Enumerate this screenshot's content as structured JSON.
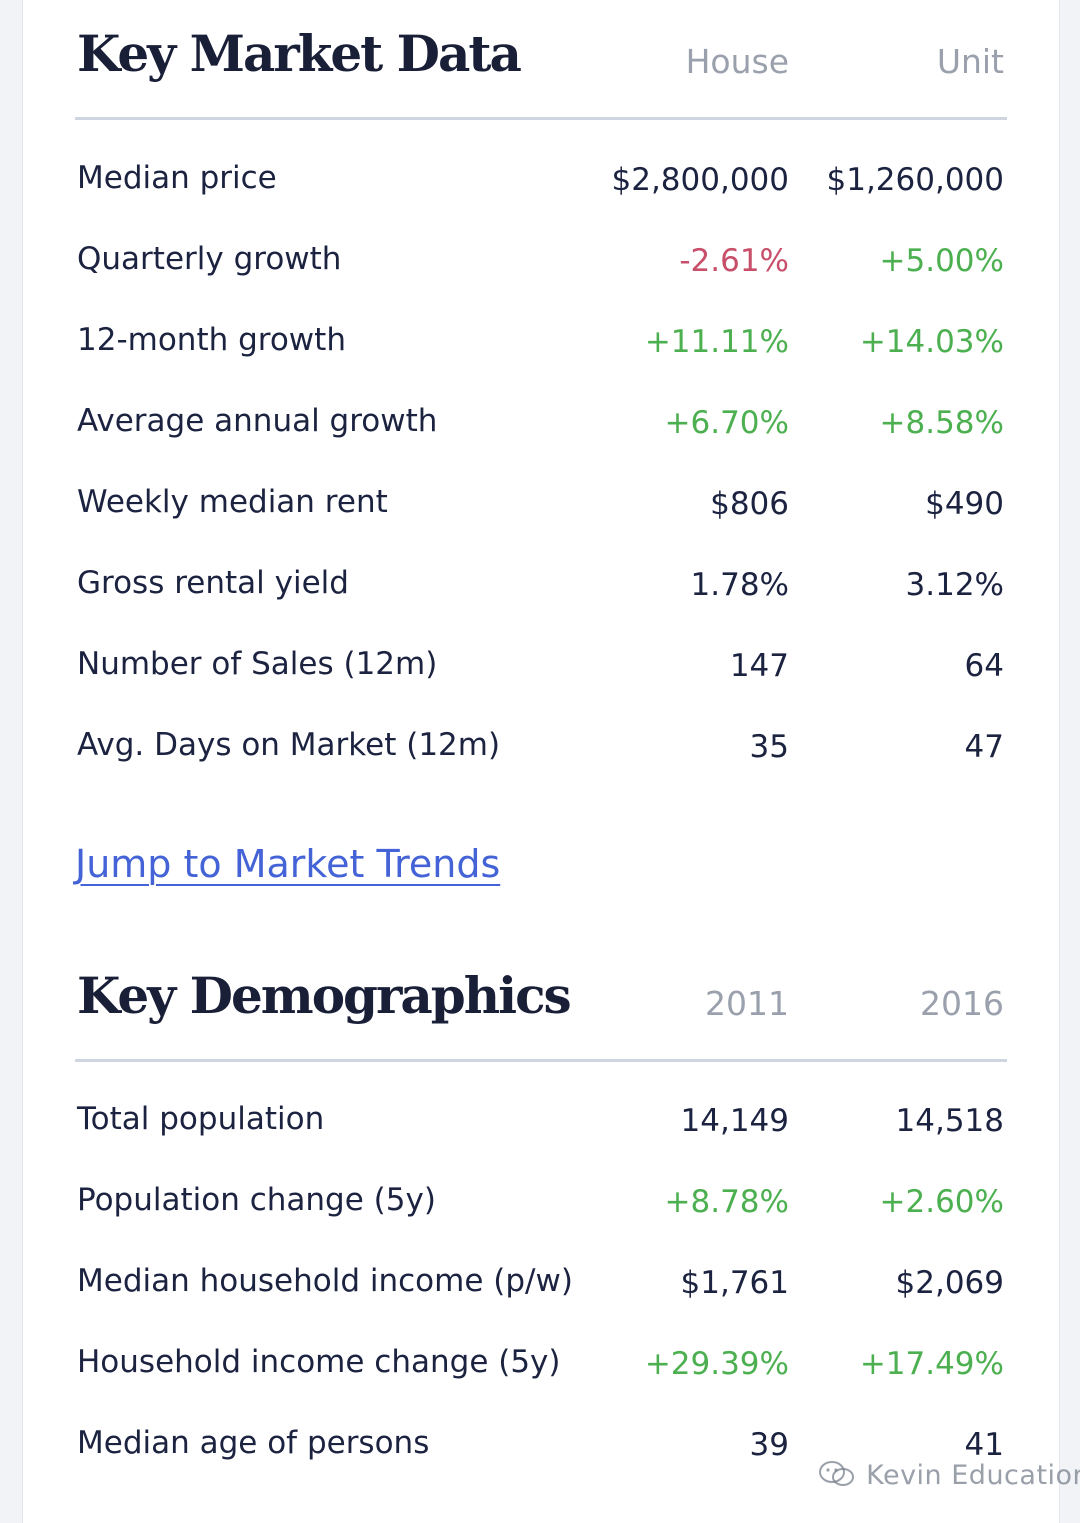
{
  "market": {
    "title": "Key Market Data",
    "col1": "House",
    "col2": "Unit",
    "rows": [
      {
        "label": "Median price",
        "v1": "$2,800,000",
        "v2": "$1,260,000",
        "t1": "neutral",
        "t2": "neutral"
      },
      {
        "label": "Quarterly growth",
        "v1": "-2.61%",
        "v2": "+5.00%",
        "t1": "neg",
        "t2": "pos"
      },
      {
        "label": "12-month growth",
        "v1": "+11.11%",
        "v2": "+14.03%",
        "t1": "pos",
        "t2": "pos"
      },
      {
        "label": "Average annual growth",
        "v1": "+6.70%",
        "v2": "+8.58%",
        "t1": "pos",
        "t2": "pos"
      },
      {
        "label": "Weekly median rent",
        "v1": "$806",
        "v2": "$490",
        "t1": "neutral",
        "t2": "neutral"
      },
      {
        "label": "Gross rental yield",
        "v1": "1.78%",
        "v2": "3.12%",
        "t1": "neutral",
        "t2": "neutral"
      },
      {
        "label": "Number of Sales (12m)",
        "v1": "147",
        "v2": "64",
        "t1": "neutral",
        "t2": "neutral"
      },
      {
        "label": "Avg. Days on Market (12m)",
        "v1": "35",
        "v2": "47",
        "t1": "neutral",
        "t2": "neutral"
      }
    ]
  },
  "jump_link": "Jump to Market Trends",
  "demographics": {
    "title": "Key Demographics",
    "col1": "2011",
    "col2": "2016",
    "rows": [
      {
        "label": "Total population",
        "v1": "14,149",
        "v2": "14,518",
        "t1": "neutral",
        "t2": "neutral"
      },
      {
        "label": "Population change (5y)",
        "v1": "+8.78%",
        "v2": "+2.60%",
        "t1": "pos",
        "t2": "pos"
      },
      {
        "label": "Median household income (p/w)",
        "v1": "$1,761",
        "v2": "$2,069",
        "t1": "neutral",
        "t2": "neutral"
      },
      {
        "label": "Household income change (5y)",
        "v1": "+29.39%",
        "v2": "+17.49%",
        "t1": "pos",
        "t2": "pos"
      },
      {
        "label": "Median age of persons",
        "v1": "39",
        "v2": "41",
        "t1": "neutral",
        "t2": "neutral"
      }
    ]
  },
  "watermark": {
    "text": "Kevin Education",
    "icon": "wechat-icon"
  },
  "colors": {
    "positive": "#4caf50",
    "negative": "#c74f6a",
    "link": "#4463d6",
    "text": "#1c2340",
    "muted": "#9aa1ad"
  }
}
